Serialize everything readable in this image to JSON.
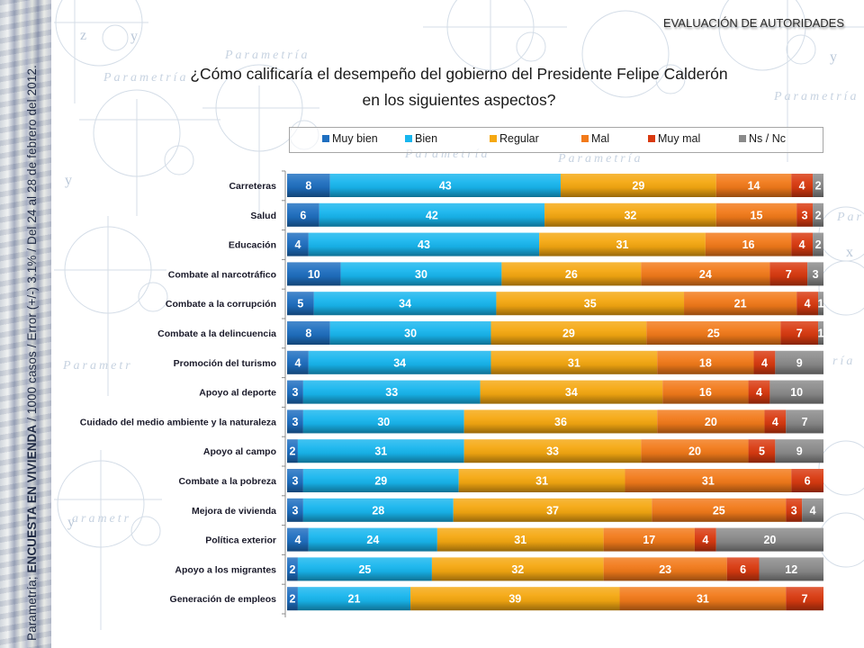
{
  "header": {
    "section_tag": "EVALUACIÓN DE AUTORIDADES",
    "title_line1": "¿Cómo calificaría el desempeño  del gobierno del Presidente Felipe Calderón",
    "title_line2": "en los siguientes aspectos?"
  },
  "sidebar": {
    "source_prefix": "Parametría; ",
    "source_bold": "ENCUESTA EN VIVIENDA",
    "source_suffix": " / 1000 casos / Error (+/-) 3.1% / Del 24 al 28 de febrero del 2012."
  },
  "watermark": {
    "text": "Parametría",
    "letters": [
      "x",
      "y",
      "z"
    ]
  },
  "chart_data": {
    "type": "bar",
    "orientation": "horizontal",
    "stacked": true,
    "title": "¿Cómo calificaría el desempeño del gobierno del Presidente Felipe Calderón en los siguientes aspectos?",
    "xlabel": "",
    "ylabel": "",
    "xlim": [
      0,
      100
    ],
    "grid": false,
    "legend_position": "top",
    "categories": [
      "Carreteras",
      "Salud",
      "Educación",
      "Combate al narcotráfico",
      "Combate a la corrupción",
      "Combate a la delincuencia",
      "Promoción del turismo",
      "Apoyo al deporte",
      "Cuidado del medio ambiente y la naturaleza",
      "Apoyo al campo",
      "Combate a la pobreza",
      "Mejora de vivienda",
      "Política exterior",
      "Apoyo a los migrantes",
      "Generación de empleos"
    ],
    "series": [
      {
        "name": "Muy bien",
        "color": "#1f6fc0",
        "values": [
          8,
          6,
          4,
          10,
          5,
          8,
          4,
          3,
          3,
          2,
          3,
          3,
          4,
          2,
          2
        ]
      },
      {
        "name": "Bien",
        "color": "#18b6ee",
        "values": [
          43,
          42,
          43,
          30,
          34,
          30,
          34,
          33,
          30,
          31,
          29,
          28,
          24,
          25,
          21
        ]
      },
      {
        "name": "Regular",
        "color": "#f5a811",
        "values": [
          29,
          32,
          31,
          26,
          35,
          29,
          31,
          34,
          36,
          33,
          31,
          37,
          31,
          32,
          39
        ]
      },
      {
        "name": "Mal",
        "color": "#f27a1a",
        "values": [
          14,
          15,
          16,
          24,
          21,
          25,
          18,
          16,
          20,
          20,
          31,
          25,
          17,
          23,
          31
        ]
      },
      {
        "name": "Muy mal",
        "color": "#d93a10",
        "values": [
          4,
          3,
          4,
          7,
          4,
          7,
          4,
          4,
          4,
          5,
          6,
          3,
          4,
          6,
          7
        ]
      },
      {
        "name": "Ns / Nc",
        "color": "#8a8a8a",
        "values": [
          2,
          2,
          2,
          3,
          1,
          1,
          9,
          10,
          7,
          9,
          null,
          4,
          20,
          12,
          null
        ]
      }
    ]
  }
}
